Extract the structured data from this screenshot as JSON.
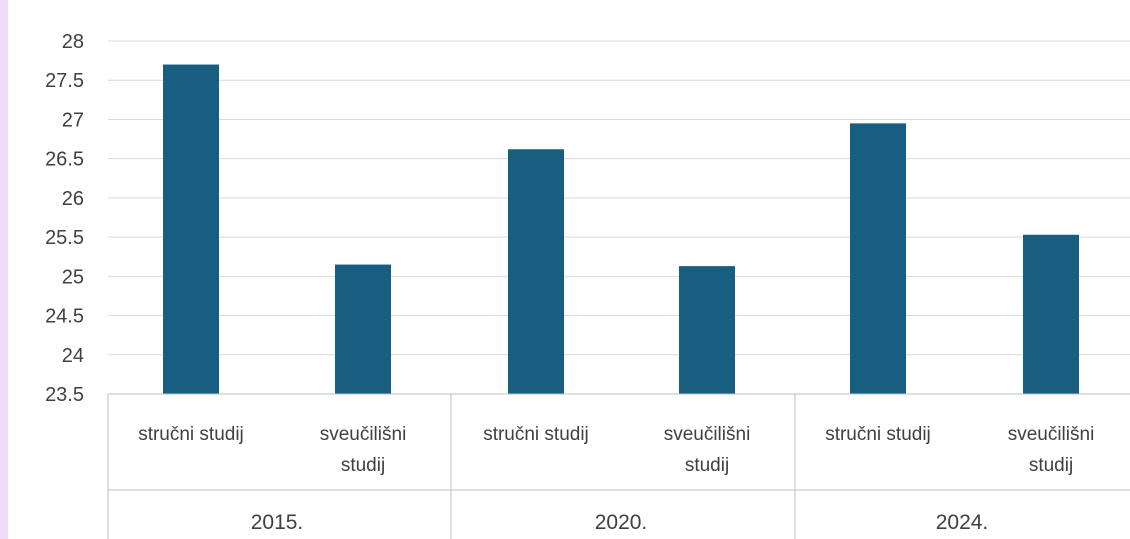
{
  "chart_data": {
    "type": "bar",
    "groups": [
      {
        "label": "2015.",
        "categories": [
          "stručni studij",
          "sveučilišni studij"
        ],
        "values": [
          27.7,
          25.15
        ]
      },
      {
        "label": "2020.",
        "categories": [
          "stručni studij",
          "sveučilišni studij"
        ],
        "values": [
          26.62,
          25.13
        ]
      },
      {
        "label": "2024.",
        "categories": [
          "stručni studij",
          "sveučilišni studij"
        ],
        "values": [
          26.95,
          25.53
        ]
      }
    ],
    "yticks": [
      "23.5",
      "24",
      "24.5",
      "25",
      "25.5",
      "26",
      "26.5",
      "27",
      "27.5",
      "28"
    ],
    "ylim": [
      23.5,
      28
    ],
    "grid": true,
    "bar_color": "#175e80",
    "title": "",
    "xlabel": "",
    "ylabel": ""
  }
}
